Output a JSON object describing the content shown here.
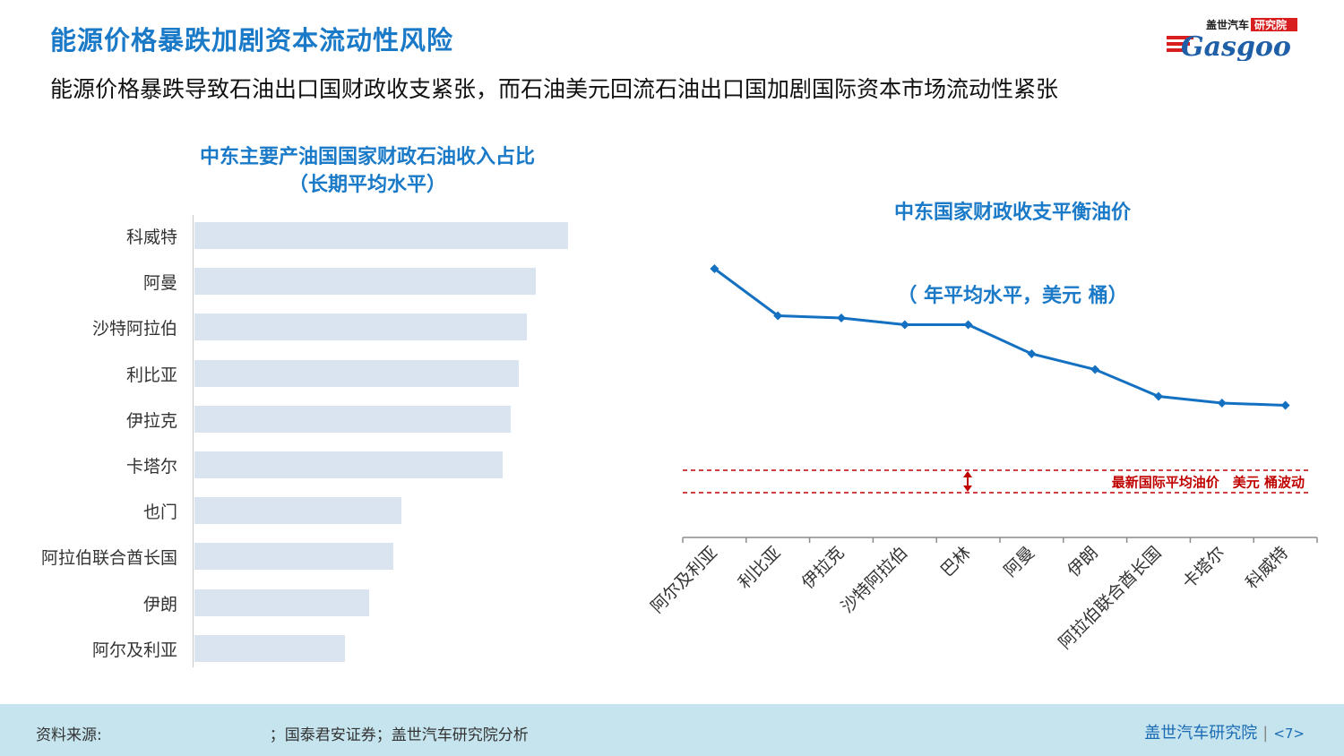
{
  "title": "能源价格暴跌加剧资本流动性风险",
  "subtitle": "能源价格暴跌导致石油出口国财政收支紧张，而石油美元回流石油出口国加剧国际资本市场流动性紧张",
  "logo": {
    "top_text": "盖世汽车",
    "badge_text": "研究院",
    "brand": "Gasgoo"
  },
  "colors": {
    "accent": "#1a7ac8",
    "bar": "#dae4f1",
    "line": "#1470c0",
    "reference": "#c00000",
    "footer_bg": "#c5e4ee"
  },
  "chart_data": [
    {
      "type": "bar",
      "orientation": "horizontal",
      "title": "中东主要产油国国家财政石油收入占比",
      "subtitle": "（长期平均水平）",
      "categories": [
        "科威特",
        "阿曼",
        "沙特阿拉伯",
        "利比亚",
        "伊拉克",
        "卡塔尔",
        "也门",
        "阿拉伯联合酋长国",
        "伊朗",
        "阿尔及利亚"
      ],
      "values": [
        92,
        84,
        82,
        80,
        78,
        76,
        51,
        49,
        43,
        37
      ],
      "units": "%",
      "xlim": [
        0,
        100
      ],
      "axis_labels_shown": false
    },
    {
      "type": "line",
      "title": "中东国家财政收支平衡油价",
      "subtitle": "（ 年平均水平，美元 桶）",
      "categories": [
        "阿尔及利亚",
        "利比亚",
        "伊拉克",
        "沙特阿拉伯",
        "巴林",
        "阿曼",
        "伊朗",
        "阿拉伯联合酋长国",
        "卡塔尔",
        "科威特"
      ],
      "values": [
        120,
        99,
        98,
        95,
        95,
        82,
        75,
        63,
        60,
        59
      ],
      "ylim": [
        0,
        150
      ],
      "reference_band": {
        "low": 20,
        "high": 30,
        "label": "最新国际平均油价　美元 桶波动"
      }
    }
  ],
  "footer": {
    "source": "资料来源:　　　　　　　　　　　；国泰君安证券；盖世汽车研究院分析",
    "brand": "盖世汽车研究院",
    "page": "<7>"
  }
}
